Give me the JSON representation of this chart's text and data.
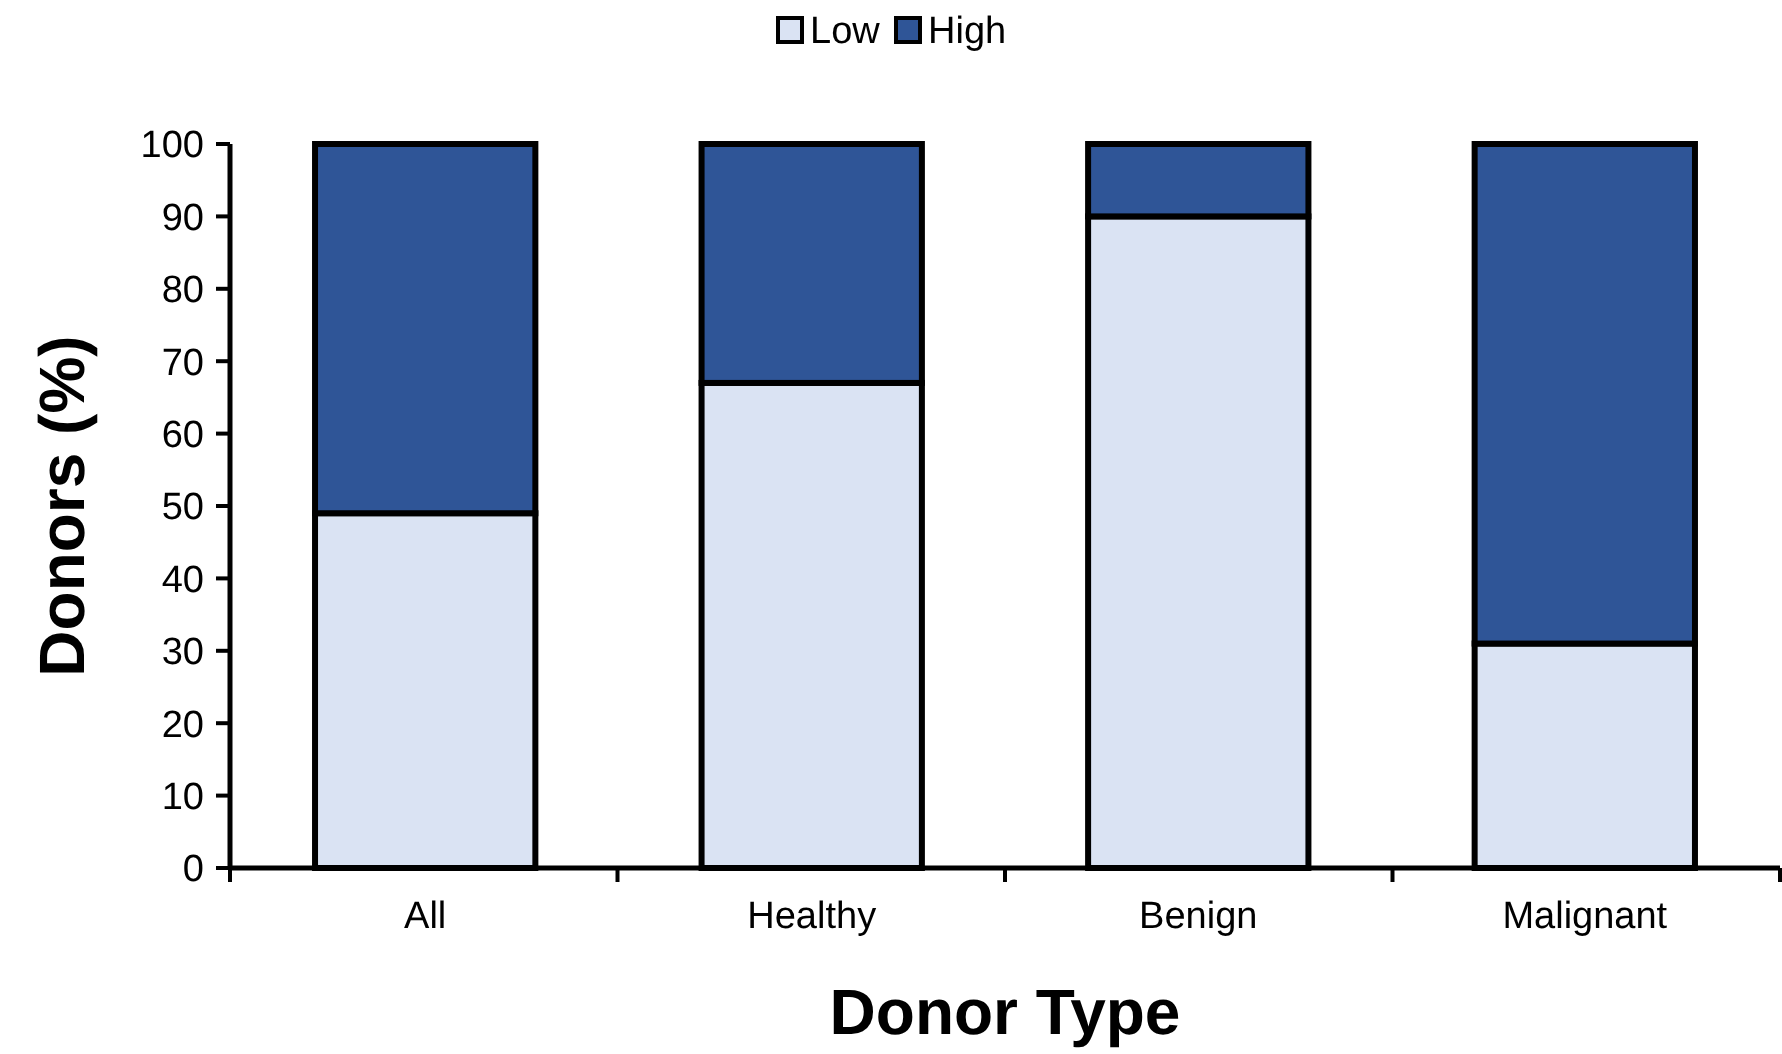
{
  "chart_data": {
    "type": "bar",
    "stacked": true,
    "xlabel": "Donor Type",
    "ylabel": "Donors (%)",
    "categories": [
      "All",
      "Healthy",
      "Benign",
      "Malignant"
    ],
    "series": [
      {
        "name": "Low",
        "color": "#dae3f3",
        "values": [
          49,
          67,
          90,
          31
        ]
      },
      {
        "name": "High",
        "color": "#2f5597",
        "values": [
          51,
          33,
          10,
          69
        ]
      }
    ],
    "ylim": [
      0,
      100
    ],
    "yticks": [
      0,
      10,
      20,
      30,
      40,
      50,
      60,
      70,
      80,
      90,
      100
    ],
    "grid": false,
    "legend": "top"
  }
}
